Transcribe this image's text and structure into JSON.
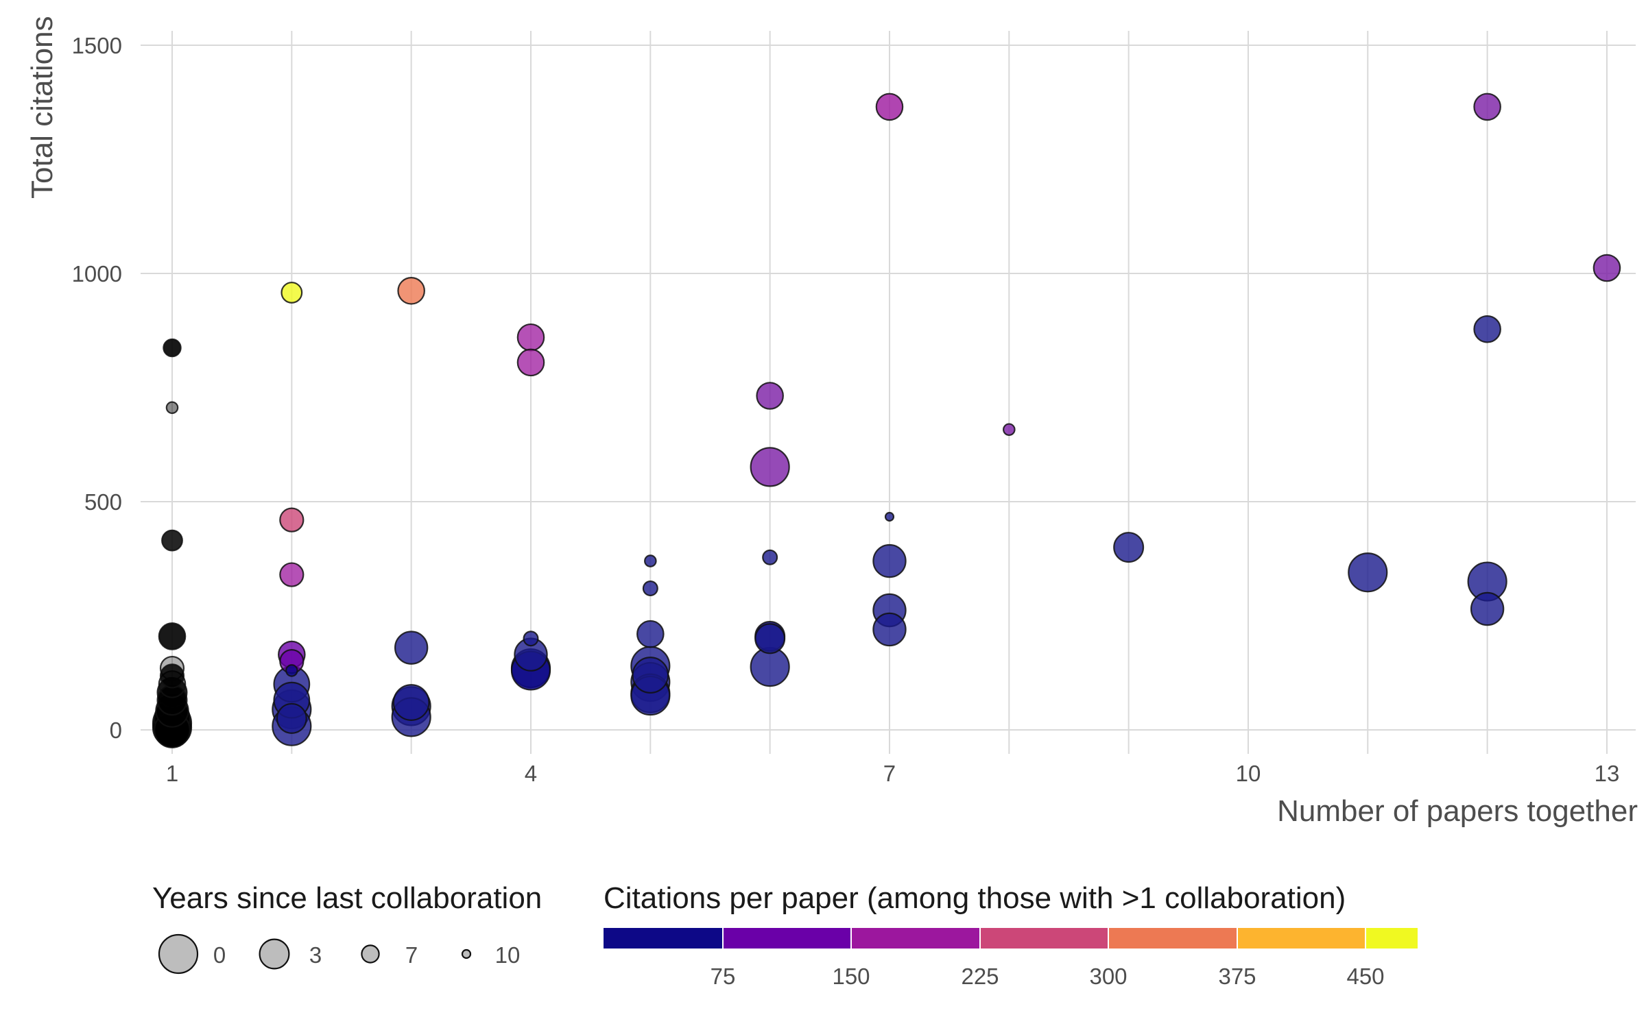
{
  "chart_data": {
    "type": "scatter",
    "title": "",
    "xlabel": "Number of papers together",
    "ylabel": "Total citations",
    "xlim": [
      0.55,
      13.9
    ],
    "ylim": [
      -40,
      1500
    ],
    "x_ticks": [
      1,
      4,
      7,
      10,
      13
    ],
    "y_ticks": [
      0,
      500,
      1000,
      1500
    ],
    "x_grid": [
      1,
      2,
      3,
      4,
      5,
      6,
      7,
      8,
      9,
      10,
      11,
      12,
      13
    ],
    "grid": true,
    "size_legend": {
      "title": "Years since last collaboration",
      "entries": [
        {
          "label": "0",
          "years": 0
        },
        {
          "label": "3",
          "years": 3
        },
        {
          "label": "7",
          "years": 7
        },
        {
          "label": "10",
          "years": 10
        }
      ]
    },
    "color_legend": {
      "title": "Citations per paper (among those with >1 collaboration)",
      "bins": [
        {
          "color": "#0d0887"
        },
        {
          "color": "#6a00a8"
        },
        {
          "color": "#9c179e"
        },
        {
          "color": "#cc4778"
        },
        {
          "color": "#ed7953"
        },
        {
          "color": "#fdb42f"
        },
        {
          "color": "#f0f921"
        }
      ],
      "labels": [
        "75",
        "150",
        "225",
        "300",
        "375",
        "450"
      ]
    },
    "points": [
      {
        "x": 1,
        "y": 837,
        "years": 7,
        "color": "#000000",
        "opacity": 0.9
      },
      {
        "x": 1,
        "y": 706,
        "years": 9,
        "color": "#000000",
        "opacity": 0.45
      },
      {
        "x": 1,
        "y": 415,
        "years": 6,
        "color": "#000000",
        "opacity": 0.85
      },
      {
        "x": 1,
        "y": 205,
        "years": 4,
        "color": "#000000",
        "opacity": 0.9
      },
      {
        "x": 1,
        "y": 135,
        "years": 5,
        "color": "#000000",
        "opacity": 0.3
      },
      {
        "x": 1,
        "y": 118,
        "years": 5,
        "color": "#000000",
        "opacity": 0.85
      },
      {
        "x": 1,
        "y": 100,
        "years": 4,
        "color": "#000000",
        "opacity": 0.4
      },
      {
        "x": 1,
        "y": 82,
        "years": 3,
        "color": "#000000",
        "opacity": 0.85
      },
      {
        "x": 1,
        "y": 65,
        "years": 3,
        "color": "#000000",
        "opacity": 0.9
      },
      {
        "x": 1,
        "y": 42,
        "years": 2,
        "color": "#000000",
        "opacity": 0.9
      },
      {
        "x": 1,
        "y": 25,
        "years": 1,
        "color": "#000000",
        "opacity": 0.9
      },
      {
        "x": 1,
        "y": 15,
        "years": 0,
        "color": "#000000",
        "opacity": 0.95
      },
      {
        "x": 1,
        "y": 5,
        "years": 0,
        "color": "#000000",
        "opacity": 0.95
      },
      {
        "x": 1,
        "y": 0,
        "years": 1,
        "color": "#000000",
        "opacity": 0.95
      },
      {
        "x": 2,
        "y": 958,
        "years": 6,
        "color": "#f0f921",
        "opacity": 0.8
      },
      {
        "x": 2,
        "y": 460,
        "years": 5,
        "color": "#cc4778",
        "opacity": 0.8
      },
      {
        "x": 2,
        "y": 340,
        "years": 5,
        "color": "#9c179e",
        "opacity": 0.75
      },
      {
        "x": 2,
        "y": 165,
        "years": 4,
        "color": "#6a00a8",
        "opacity": 0.8
      },
      {
        "x": 2,
        "y": 150,
        "years": 5,
        "color": "#6a00a8",
        "opacity": 0.75
      },
      {
        "x": 2,
        "y": 130,
        "years": 9,
        "color": "#0d0887",
        "opacity": 0.8
      },
      {
        "x": 2,
        "y": 100,
        "years": 1,
        "color": "#1a1a8c",
        "opacity": 0.8
      },
      {
        "x": 2,
        "y": 65,
        "years": 1,
        "color": "#1a1a8c",
        "opacity": 0.8
      },
      {
        "x": 2,
        "y": 45,
        "years": 0,
        "color": "#1a1a8c",
        "opacity": 0.8
      },
      {
        "x": 2,
        "y": 25,
        "years": 3,
        "color": "#1a1a8c",
        "opacity": 0.8
      },
      {
        "x": 2,
        "y": 8,
        "years": 0,
        "color": "#1a1a8c",
        "opacity": 0.8
      },
      {
        "x": 3,
        "y": 962,
        "years": 4,
        "color": "#ed7953",
        "opacity": 0.8
      },
      {
        "x": 3,
        "y": 180,
        "years": 2,
        "color": "#1a1a8c",
        "opacity": 0.8
      },
      {
        "x": 3,
        "y": 60,
        "years": 1,
        "color": "#1a1a8c",
        "opacity": 0.8
      },
      {
        "x": 3,
        "y": 52,
        "years": 0,
        "color": "#1a1a8c",
        "opacity": 0.8
      },
      {
        "x": 3,
        "y": 28,
        "years": 0,
        "color": "#1a1a8c",
        "opacity": 0.8
      },
      {
        "x": 4,
        "y": 860,
        "years": 4,
        "color": "#9c179e",
        "opacity": 0.75
      },
      {
        "x": 4,
        "y": 805,
        "years": 4,
        "color": "#9c179e",
        "opacity": 0.75
      },
      {
        "x": 4,
        "y": 200,
        "years": 8,
        "color": "#1a1a8c",
        "opacity": 0.8
      },
      {
        "x": 4,
        "y": 165,
        "years": 2,
        "color": "#1a1a8c",
        "opacity": 0.8
      },
      {
        "x": 4,
        "y": 135,
        "years": 0,
        "color": "#1a1a8c",
        "opacity": 0.8
      },
      {
        "x": 4,
        "y": 130,
        "years": 0,
        "color": "#0d0887",
        "opacity": 0.85
      },
      {
        "x": 5,
        "y": 370,
        "years": 9,
        "color": "#1a1a8c",
        "opacity": 0.8
      },
      {
        "x": 5,
        "y": 310,
        "years": 8,
        "color": "#1a1a8c",
        "opacity": 0.8
      },
      {
        "x": 5,
        "y": 210,
        "years": 4,
        "color": "#1a1a8c",
        "opacity": 0.8
      },
      {
        "x": 5,
        "y": 140,
        "years": 0,
        "color": "#1a1a8c",
        "opacity": 0.8
      },
      {
        "x": 5,
        "y": 120,
        "years": 1,
        "color": "#1a1a8c",
        "opacity": 0.8
      },
      {
        "x": 5,
        "y": 105,
        "years": 0,
        "color": "#1a1a8c",
        "opacity": 0.8
      },
      {
        "x": 5,
        "y": 80,
        "years": 0,
        "color": "#1a1a8c",
        "opacity": 0.8
      },
      {
        "x": 5,
        "y": 75,
        "years": 0,
        "color": "#1a1a8c",
        "opacity": 0.8
      },
      {
        "x": 6,
        "y": 732,
        "years": 4,
        "color": "#7b1da5",
        "opacity": 0.8
      },
      {
        "x": 6,
        "y": 576,
        "years": 0,
        "color": "#7b1da5",
        "opacity": 0.8
      },
      {
        "x": 6,
        "y": 378,
        "years": 8,
        "color": "#1a1a8c",
        "opacity": 0.8
      },
      {
        "x": 6,
        "y": 205,
        "years": 3,
        "color": "#0d0887",
        "opacity": 0.85
      },
      {
        "x": 6,
        "y": 200,
        "years": 3,
        "color": "#1a1a8c",
        "opacity": 0.8
      },
      {
        "x": 6,
        "y": 138,
        "years": 0,
        "color": "#1a1a8c",
        "opacity": 0.8
      },
      {
        "x": 7,
        "y": 1365,
        "years": 4,
        "color": "#9c179e",
        "opacity": 0.8
      },
      {
        "x": 7,
        "y": 467,
        "years": 10,
        "color": "#1a1a8c",
        "opacity": 0.8
      },
      {
        "x": 7,
        "y": 370,
        "years": 2,
        "color": "#1a1a8c",
        "opacity": 0.8
      },
      {
        "x": 7,
        "y": 262,
        "years": 2,
        "color": "#1a1a8c",
        "opacity": 0.8
      },
      {
        "x": 7,
        "y": 220,
        "years": 2,
        "color": "#1a1a8c",
        "opacity": 0.8
      },
      {
        "x": 8,
        "y": 658,
        "years": 9,
        "color": "#7b1da5",
        "opacity": 0.8
      },
      {
        "x": 9,
        "y": 400,
        "years": 3,
        "color": "#1a1a8c",
        "opacity": 0.8
      },
      {
        "x": 11,
        "y": 345,
        "years": 0,
        "color": "#1a1a8c",
        "opacity": 0.8
      },
      {
        "x": 12,
        "y": 1365,
        "years": 4,
        "color": "#7b1da5",
        "opacity": 0.8
      },
      {
        "x": 12,
        "y": 878,
        "years": 4,
        "color": "#1a1a8c",
        "opacity": 0.8
      },
      {
        "x": 12,
        "y": 325,
        "years": 0,
        "color": "#1a1a8c",
        "opacity": 0.8
      },
      {
        "x": 12,
        "y": 265,
        "years": 2,
        "color": "#1a1a8c",
        "opacity": 0.8
      },
      {
        "x": 13,
        "y": 1012,
        "years": 4,
        "color": "#7b1da5",
        "opacity": 0.8
      }
    ]
  }
}
